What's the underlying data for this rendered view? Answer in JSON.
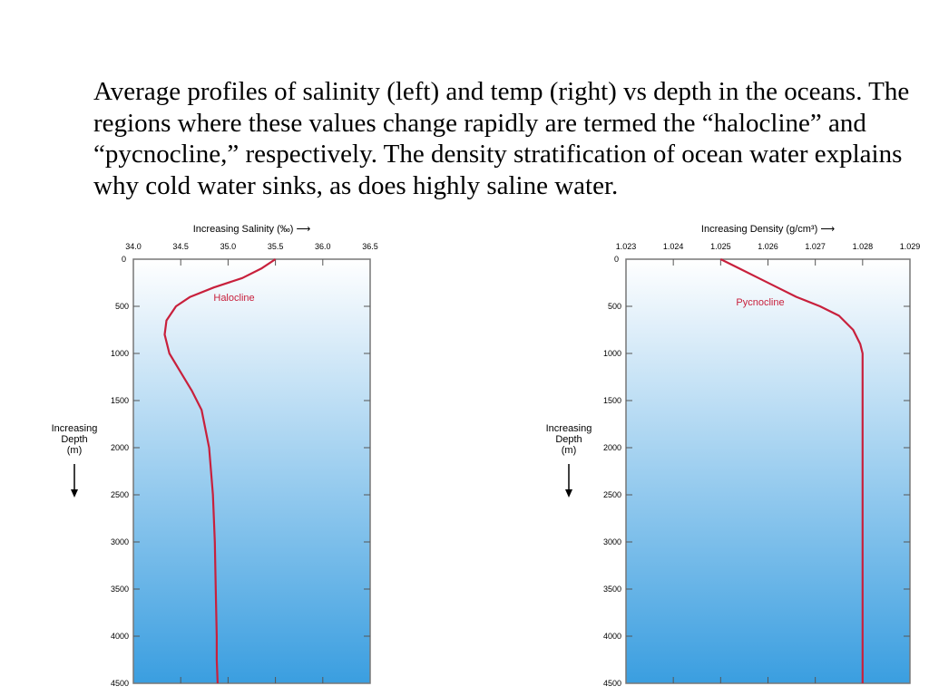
{
  "caption": "Average profiles of salinity (left) and temp (right) vs depth in the oceans.  The regions where these values change rapidly are termed the “halocline” and “pycnocline,” respectively.  The density stratification of ocean water explains why cold water sinks, as does highly saline water.",
  "colors": {
    "curve": "#c8203c",
    "water_top": "#ffffff",
    "water_bottom": "#3a9ee0"
  },
  "chart_data": [
    {
      "type": "line",
      "title": "Increasing Salinity (‰) ⟶",
      "xlabel": "Increasing Salinity (‰)",
      "ylabel": "Increasing Depth (m)",
      "annotation": "Halocline",
      "xlim": [
        34.0,
        36.5
      ],
      "ylim": [
        0,
        4500
      ],
      "xticks": [
        "34.0",
        "34.5",
        "35.0",
        "35.5",
        "36.0",
        "36.5"
      ],
      "yticks": [
        "0",
        "500",
        "1000",
        "1500",
        "2000",
        "2500",
        "3000",
        "3500",
        "4000",
        "4500"
      ],
      "series": [
        {
          "name": "Salinity",
          "x": [
            35.5,
            35.35,
            35.15,
            34.85,
            34.6,
            34.45,
            34.35,
            34.33,
            34.38,
            34.5,
            34.62,
            34.72,
            34.8,
            34.84,
            34.86,
            34.87,
            34.88,
            34.88,
            34.89
          ],
          "depth": [
            0,
            100,
            200,
            300,
            400,
            500,
            650,
            800,
            1000,
            1200,
            1400,
            1600,
            2000,
            2500,
            3000,
            3500,
            4000,
            4250,
            4500
          ]
        }
      ]
    },
    {
      "type": "line",
      "title": "Increasing Density (g/cm³) ⟶",
      "xlabel": "Increasing Density (g/cm³)",
      "ylabel": "Increasing Depth (m)",
      "annotation": "Pycnocline",
      "xlim": [
        1.023,
        1.029
      ],
      "ylim": [
        0,
        4500
      ],
      "xticks": [
        "1.023",
        "1.024",
        "1.025",
        "1.026",
        "1.027",
        "1.028",
        "1.029"
      ],
      "yticks": [
        "0",
        "500",
        "1000",
        "1500",
        "2000",
        "2500",
        "3000",
        "3500",
        "4000",
        "4500"
      ],
      "series": [
        {
          "name": "Density",
          "x": [
            1.025,
            1.0254,
            1.0258,
            1.0262,
            1.0266,
            1.0271,
            1.0275,
            1.0278,
            1.02795,
            1.028,
            1.028,
            1.028
          ],
          "depth": [
            0,
            100,
            200,
            300,
            400,
            500,
            600,
            750,
            900,
            1000,
            2500,
            4500
          ]
        }
      ]
    }
  ]
}
